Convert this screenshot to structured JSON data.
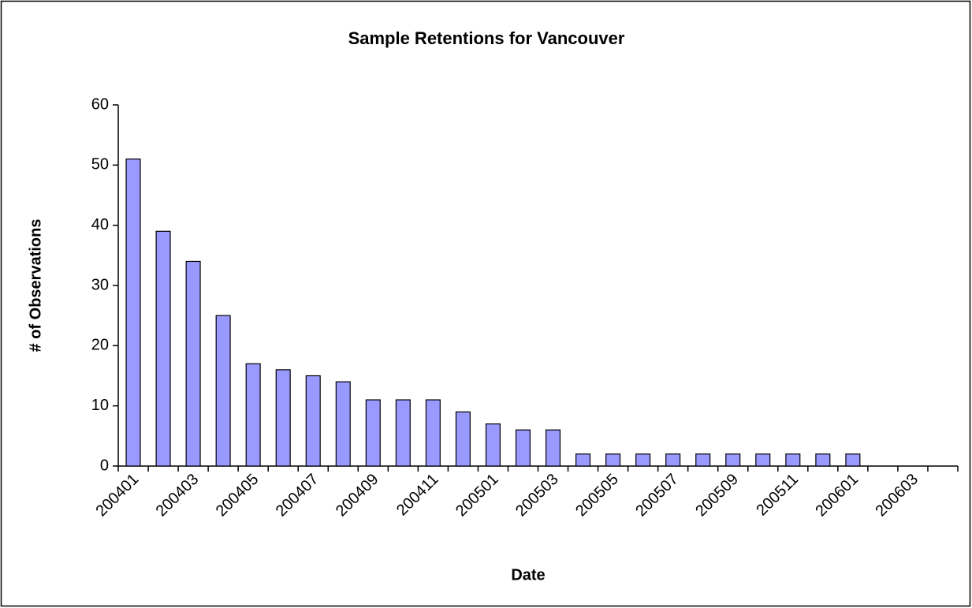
{
  "chart_data": {
    "type": "bar",
    "title": "Sample Retentions for Vancouver",
    "x_label": "Date",
    "y_label": "# of Observations",
    "categories": [
      "200401",
      null,
      "200403",
      null,
      "200405",
      null,
      "200407",
      null,
      "200409",
      null,
      "200411",
      null,
      "200501",
      null,
      "200503",
      null,
      "200505",
      null,
      "200507",
      null,
      "200509",
      null,
      "200511",
      null,
      "200601",
      null,
      "200603",
      null
    ],
    "values": [
      51,
      39,
      34,
      25,
      17,
      16,
      15,
      14,
      11,
      11,
      11,
      9,
      7,
      6,
      6,
      2,
      2,
      2,
      2,
      2,
      2,
      2,
      2,
      2,
      2,
      null,
      null,
      null
    ],
    "color": "#9999ff",
    "ylim": [
      0,
      60
    ],
    "yticks": [
      0,
      10,
      20,
      30,
      40,
      50,
      60
    ]
  }
}
